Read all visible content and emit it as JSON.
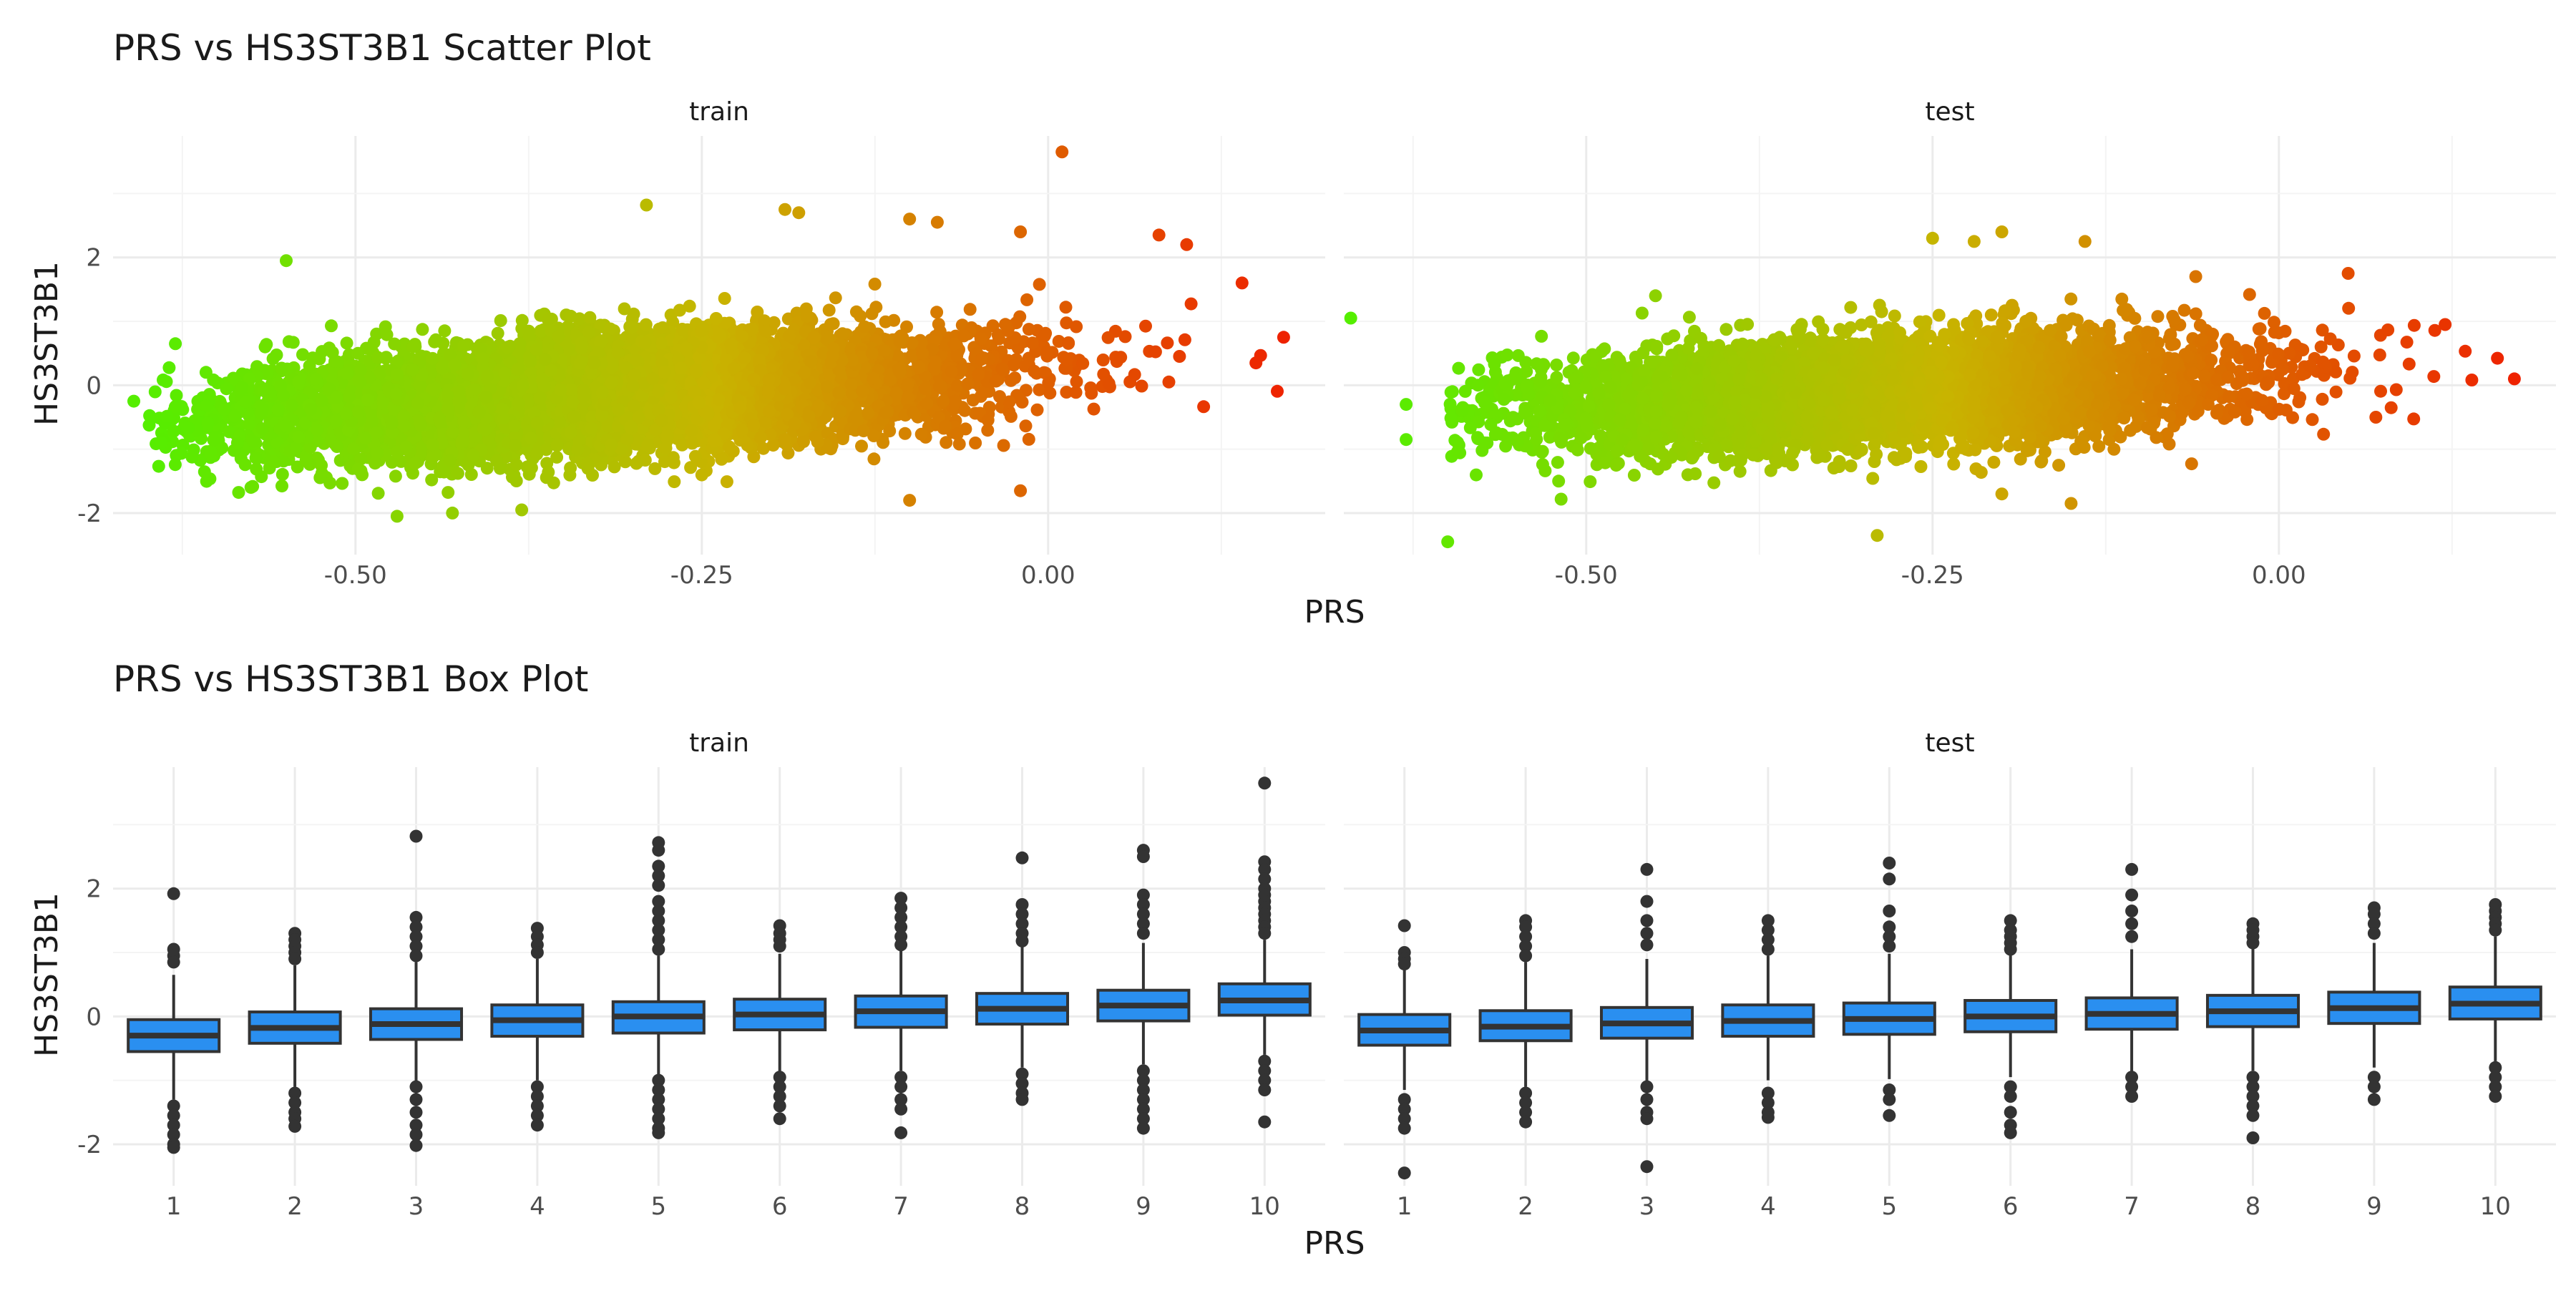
{
  "chart_data": [
    {
      "type": "scatter",
      "title": "PRS vs HS3ST3B1 Scatter Plot",
      "xlabel": "PRS",
      "ylabel": "HS3ST3B1",
      "facets": [
        "train",
        "test"
      ],
      "xticks": [
        -0.5,
        -0.25,
        0.0
      ],
      "xtick_labels": [
        "-0.50",
        "-0.25",
        "0.00"
      ],
      "yticks": [
        -2,
        0,
        2
      ],
      "ytick_labels": [
        "-2",
        "0",
        "2"
      ],
      "xlim": [
        -0.675,
        0.2
      ],
      "ylim": [
        -2.65,
        3.9
      ],
      "grid": true,
      "color_scale": {
        "low": "#55ee00",
        "mid": "#c8b400",
        "high": "#ee2200",
        "domain": [
          -0.65,
          0.17
        ]
      },
      "panels": [
        {
          "facet": "train",
          "point_count_estimate": 8000,
          "trend": {
            "x": [
              -0.6,
              0.15
            ],
            "y": [
              -0.5,
              0.45
            ]
          },
          "x_range": [
            -0.65,
            0.17
          ],
          "outliers": [
            {
              "x": 0.01,
              "y": 3.65
            },
            {
              "x": -0.29,
              "y": 2.82
            },
            {
              "x": -0.55,
              "y": 1.95
            },
            {
              "x": -0.19,
              "y": 2.75
            },
            {
              "x": -0.18,
              "y": 2.7
            },
            {
              "x": -0.1,
              "y": 2.6
            },
            {
              "x": -0.08,
              "y": 2.55
            },
            {
              "x": -0.02,
              "y": 2.4
            },
            {
              "x": 0.08,
              "y": 2.35
            },
            {
              "x": 0.1,
              "y": 2.2
            },
            {
              "x": 0.14,
              "y": 1.6
            },
            {
              "x": 0.17,
              "y": 0.75
            },
            {
              "x": -0.63,
              "y": 0.65
            },
            {
              "x": -0.66,
              "y": -0.25
            },
            {
              "x": -0.64,
              "y": -0.9
            },
            {
              "x": -0.47,
              "y": -2.05
            },
            {
              "x": -0.43,
              "y": -2.0
            },
            {
              "x": -0.38,
              "y": -1.95
            },
            {
              "x": -0.02,
              "y": -1.65
            },
            {
              "x": -0.1,
              "y": -1.8
            },
            {
              "x": 0.15,
              "y": 0.35
            }
          ]
        },
        {
          "facet": "test",
          "point_count_estimate": 5000,
          "trend": {
            "x": [
              -0.55,
              0.15
            ],
            "y": [
              -0.4,
              0.35
            ]
          },
          "x_range": [
            -0.6,
            0.17
          ],
          "outliers": [
            {
              "x": -0.67,
              "y": 1.05
            },
            {
              "x": -0.63,
              "y": -0.3
            },
            {
              "x": -0.63,
              "y": -0.85
            },
            {
              "x": -0.6,
              "y": -2.45
            },
            {
              "x": -0.29,
              "y": -2.35
            },
            {
              "x": -0.2,
              "y": 2.4
            },
            {
              "x": -0.22,
              "y": 2.25
            },
            {
              "x": -0.25,
              "y": 2.3
            },
            {
              "x": -0.14,
              "y": 2.25
            },
            {
              "x": -0.06,
              "y": 1.7
            },
            {
              "x": 0.05,
              "y": 1.75
            },
            {
              "x": 0.17,
              "y": 0.1
            },
            {
              "x": 0.12,
              "y": 0.95
            },
            {
              "x": -0.45,
              "y": 1.4
            },
            {
              "x": -0.15,
              "y": -1.85
            },
            {
              "x": -0.2,
              "y": -1.7
            },
            {
              "x": 0.07,
              "y": -0.5
            }
          ]
        }
      ]
    },
    {
      "type": "box",
      "title": "PRS vs HS3ST3B1 Box Plot",
      "xlabel": "PRS",
      "ylabel": "HS3ST3B1",
      "facets": [
        "train",
        "test"
      ],
      "categories": [
        "1",
        "2",
        "3",
        "4",
        "5",
        "6",
        "7",
        "8",
        "9",
        "10"
      ],
      "yticks": [
        -2,
        0,
        2
      ],
      "ytick_labels": [
        "-2",
        "0",
        "2"
      ],
      "ylim": [
        -2.65,
        3.9
      ],
      "grid": true,
      "box_fill": "#2a8ff0",
      "box_stroke": "#333333",
      "panels": [
        {
          "facet": "train",
          "series": [
            {
              "category": "1",
              "q1": -0.55,
              "median": -0.3,
              "q3": -0.05,
              "whisker_low": -1.3,
              "whisker_high": 0.65,
              "outliers": [
                1.92,
                1.05,
                0.95,
                0.85,
                -1.4,
                -1.55,
                -1.7,
                -1.85,
                -2.0,
                -2.05
              ]
            },
            {
              "category": "2",
              "q1": -0.42,
              "median": -0.18,
              "q3": 0.07,
              "whisker_low": -1.1,
              "whisker_high": 0.8,
              "outliers": [
                1.3,
                1.2,
                1.1,
                1.0,
                0.9,
                -1.2,
                -1.35,
                -1.5,
                -1.6,
                -1.72
              ]
            },
            {
              "category": "3",
              "q1": -0.36,
              "median": -0.12,
              "q3": 0.12,
              "whisker_low": -1.05,
              "whisker_high": 0.85,
              "outliers": [
                2.82,
                1.55,
                1.4,
                1.25,
                1.1,
                0.95,
                -1.1,
                -1.3,
                -1.5,
                -1.7,
                -1.85,
                -2.02
              ]
            },
            {
              "category": "4",
              "q1": -0.31,
              "median": -0.06,
              "q3": 0.18,
              "whisker_low": -1.0,
              "whisker_high": 0.9,
              "outliers": [
                1.38,
                1.25,
                1.12,
                1.0,
                -1.1,
                -1.25,
                -1.4,
                -1.55,
                -1.7
              ]
            },
            {
              "category": "5",
              "q1": -0.26,
              "median": 0.0,
              "q3": 0.23,
              "whisker_low": -0.95,
              "whisker_high": 0.95,
              "outliers": [
                2.72,
                2.6,
                2.35,
                2.2,
                2.05,
                1.8,
                1.65,
                1.5,
                1.35,
                1.2,
                1.05,
                -1.0,
                -1.15,
                -1.3,
                -1.45,
                -1.6,
                -1.75,
                -1.82
              ]
            },
            {
              "category": "6",
              "q1": -0.21,
              "median": 0.03,
              "q3": 0.27,
              "whisker_low": -0.9,
              "whisker_high": 0.98,
              "outliers": [
                1.42,
                1.3,
                1.2,
                1.1,
                -0.95,
                -1.1,
                -1.25,
                -1.4,
                -1.6
              ]
            },
            {
              "category": "7",
              "q1": -0.17,
              "median": 0.08,
              "q3": 0.32,
              "whisker_low": -0.85,
              "whisker_high": 1.05,
              "outliers": [
                1.85,
                1.7,
                1.55,
                1.4,
                1.25,
                1.12,
                -0.95,
                -1.1,
                -1.3,
                -1.45,
                -1.82
              ]
            },
            {
              "category": "8",
              "q1": -0.12,
              "median": 0.12,
              "q3": 0.36,
              "whisker_low": -0.8,
              "whisker_high": 1.1,
              "outliers": [
                2.48,
                1.75,
                1.6,
                1.45,
                1.3,
                1.18,
                -0.9,
                -1.05,
                -1.2,
                -1.3
              ]
            },
            {
              "category": "9",
              "q1": -0.07,
              "median": 0.17,
              "q3": 0.41,
              "whisker_low": -0.75,
              "whisker_high": 1.15,
              "outliers": [
                2.6,
                2.5,
                1.9,
                1.75,
                1.6,
                1.45,
                1.3,
                -0.85,
                -1.0,
                -1.15,
                -1.3,
                -1.45,
                -1.6,
                -1.75
              ]
            },
            {
              "category": "10",
              "q1": 0.02,
              "median": 0.25,
              "q3": 0.51,
              "whisker_low": -0.6,
              "whisker_high": 1.2,
              "outliers": [
                3.65,
                2.42,
                2.3,
                2.15,
                2.0,
                1.9,
                1.8,
                1.7,
                1.6,
                1.5,
                1.4,
                1.3,
                -0.7,
                -0.85,
                -1.0,
                -1.15,
                -1.65
              ]
            }
          ]
        },
        {
          "facet": "test",
          "series": [
            {
              "category": "1",
              "q1": -0.45,
              "median": -0.22,
              "q3": 0.03,
              "whisker_low": -1.15,
              "whisker_high": 0.75,
              "outliers": [
                1.42,
                1.0,
                0.9,
                0.82,
                -1.3,
                -1.45,
                -1.6,
                -1.75,
                -2.45
              ]
            },
            {
              "category": "2",
              "q1": -0.38,
              "median": -0.16,
              "q3": 0.09,
              "whisker_low": -1.1,
              "whisker_high": 0.85,
              "outliers": [
                1.5,
                1.4,
                1.25,
                1.1,
                0.95,
                -1.2,
                -1.35,
                -1.5,
                -1.65
              ]
            },
            {
              "category": "3",
              "q1": -0.34,
              "median": -0.11,
              "q3": 0.14,
              "whisker_low": -1.05,
              "whisker_high": 0.9,
              "outliers": [
                2.3,
                1.8,
                1.5,
                1.3,
                1.12,
                -1.1,
                -1.3,
                -1.5,
                -1.6,
                -2.35
              ]
            },
            {
              "category": "4",
              "q1": -0.31,
              "median": -0.07,
              "q3": 0.18,
              "whisker_low": -1.0,
              "whisker_high": 0.95,
              "outliers": [
                1.5,
                1.35,
                1.2,
                1.05,
                -1.2,
                -1.35,
                -1.5,
                -1.58
              ]
            },
            {
              "category": "5",
              "q1": -0.28,
              "median": -0.04,
              "q3": 0.21,
              "whisker_low": -0.98,
              "whisker_high": 0.98,
              "outliers": [
                2.4,
                2.15,
                1.65,
                1.4,
                1.25,
                1.1,
                -1.15,
                -1.3,
                -1.55
              ]
            },
            {
              "category": "6",
              "q1": -0.24,
              "median": 0.0,
              "q3": 0.25,
              "whisker_low": -0.95,
              "whisker_high": 1.0,
              "outliers": [
                1.5,
                1.35,
                1.25,
                1.15,
                1.05,
                -1.1,
                -1.25,
                -1.5,
                -1.7,
                -1.82
              ]
            },
            {
              "category": "7",
              "q1": -0.2,
              "median": 0.04,
              "q3": 0.29,
              "whisker_low": -0.9,
              "whisker_high": 1.05,
              "outliers": [
                2.3,
                1.9,
                1.65,
                1.45,
                1.25,
                -0.95,
                -1.1,
                -1.25
              ]
            },
            {
              "category": "8",
              "q1": -0.16,
              "median": 0.08,
              "q3": 0.33,
              "whisker_low": -0.85,
              "whisker_high": 1.1,
              "outliers": [
                1.45,
                1.35,
                1.25,
                1.15,
                -0.95,
                -1.1,
                -1.25,
                -1.4,
                -1.55,
                -1.9
              ]
            },
            {
              "category": "9",
              "q1": -0.11,
              "median": 0.13,
              "q3": 0.38,
              "whisker_low": -0.8,
              "whisker_high": 1.15,
              "outliers": [
                1.7,
                1.6,
                1.45,
                1.3,
                -0.95,
                -1.1,
                -1.3
              ]
            },
            {
              "category": "10",
              "q1": -0.04,
              "median": 0.2,
              "q3": 0.46,
              "whisker_low": -0.7,
              "whisker_high": 1.25,
              "outliers": [
                1.75,
                1.65,
                1.55,
                1.45,
                1.35,
                -0.8,
                -0.95,
                -1.1,
                -1.25
              ]
            }
          ]
        }
      ]
    }
  ]
}
